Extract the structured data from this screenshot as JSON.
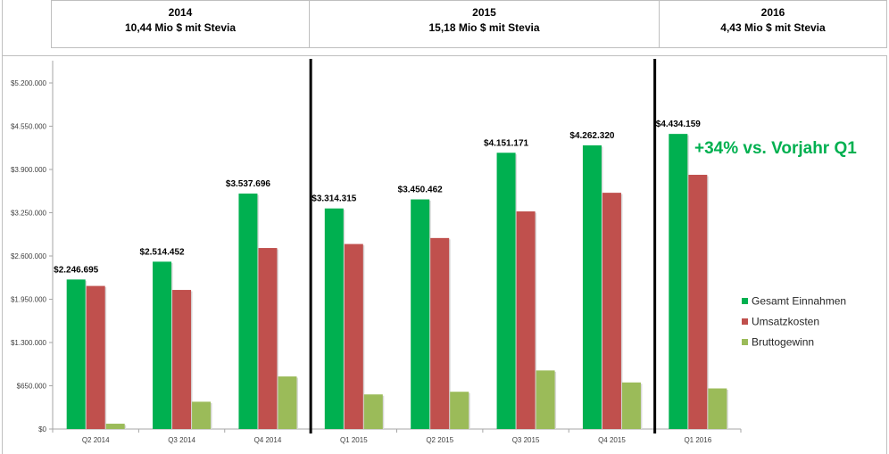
{
  "header": {
    "panels": [
      {
        "year": "2014",
        "amount": "10,44 Mio $ mit Stevia"
      },
      {
        "year": "2015",
        "amount": "15,18 Mio $ mit Stevia"
      },
      {
        "year": "2016",
        "amount": "4,43 Mio $ mit Stevia"
      }
    ]
  },
  "colors": {
    "gesamt": "#00b050",
    "umsatz": "#c0504d",
    "brutto": "#9bbb59",
    "annotation": "#00b050",
    "divider": "#000000"
  },
  "chart_data": {
    "type": "bar",
    "categories": [
      "Q2 2014",
      "Q3 2014",
      "Q4 2014",
      "Q1 2015",
      "Q2 2015",
      "Q3 2015",
      "Q4 2015",
      "Q1 2016"
    ],
    "series": [
      {
        "name": "Gesamt Einnahmen",
        "values": [
          2246695,
          2514452,
          3537696,
          3314315,
          3450462,
          4151171,
          4262320,
          4434159
        ]
      },
      {
        "name": "Umsatzkosten",
        "values": [
          2150000,
          2090000,
          2720000,
          2780000,
          2870000,
          3270000,
          3550000,
          3820000
        ]
      },
      {
        "name": "Bruttogewinn",
        "values": [
          80000,
          410000,
          790000,
          520000,
          560000,
          880000,
          700000,
          610000
        ]
      }
    ],
    "data_labels": [
      "$2.246.695",
      "$2.514.452",
      "$3.537.696",
      "$3.314.315",
      "$3.450.462",
      "$4.151.171",
      "$4.262.320",
      "$4.434.159"
    ],
    "yticks": [
      0,
      650000,
      1300000,
      1950000,
      2600000,
      3250000,
      3900000,
      4550000,
      5200000
    ],
    "ytick_labels": [
      "$0",
      "$650.000",
      "$1.300.000",
      "$1.950.000",
      "$2.600.000",
      "$3.250.000",
      "$3.900.000",
      "$4.550.000",
      "$5.200.000"
    ],
    "ylim": [
      0,
      5200000
    ],
    "legend_position": "right",
    "annotation": "+34% vs. Vorjahr Q1",
    "dividers_after_category": [
      2,
      6
    ],
    "title": "",
    "xlabel": "",
    "ylabel": ""
  }
}
